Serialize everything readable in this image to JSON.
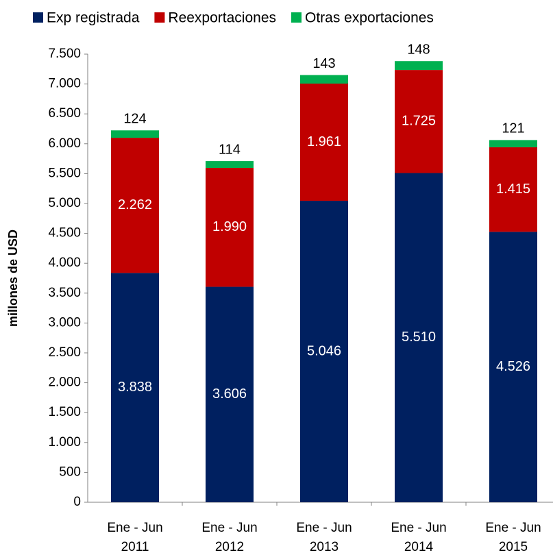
{
  "chart_data": {
    "type": "stacked_bar",
    "y_label": "millones de USD",
    "categories": [
      "Ene - Jun 2011",
      "Ene - Jun 2012",
      "Ene - Jun 2013",
      "Ene - Jun 2014",
      "Ene - Jun 2015"
    ],
    "series": [
      {
        "name": "Exp registrada",
        "color": "#002060",
        "values": [
          3838,
          3606,
          5046,
          5510,
          4526
        ],
        "value_labels": [
          "3.838",
          "3.606",
          "5.046",
          "5.510",
          "4.526"
        ]
      },
      {
        "name": "Reexportaciones",
        "color": "#c00000",
        "values": [
          2262,
          1990,
          1961,
          1725,
          1415
        ],
        "value_labels": [
          "2.262",
          "1.990",
          "1.961",
          "1.725",
          "1.415"
        ]
      },
      {
        "name": "Otras exportaciones",
        "color": "#00b050",
        "values": [
          124,
          114,
          143,
          148,
          121
        ]
      }
    ],
    "ylim": [
      0,
      7500
    ],
    "yticks": [
      0,
      500,
      {
        "value": 1000,
        "label": "1.000"
      },
      {
        "value": 1500,
        "label": "1.500"
      },
      {
        "value": 2000,
        "label": "2.000"
      },
      {
        "value": 2500,
        "label": "2.500"
      },
      {
        "value": 3000,
        "label": "3.000"
      },
      {
        "value": 3500,
        "label": "3.500"
      },
      {
        "value": 4000,
        "label": "4.000"
      },
      {
        "value": 4500,
        "label": "4.500"
      },
      {
        "value": 5000,
        "label": "5.000"
      },
      {
        "value": 5500,
        "label": "5.500"
      },
      {
        "value": 6000,
        "label": "6.000"
      },
      {
        "value": 6500,
        "label": "6.500"
      },
      {
        "value": 7000,
        "label": "7.000"
      },
      {
        "value": 7500,
        "label": "7.500"
      }
    ],
    "grid": false,
    "legend": "top"
  }
}
